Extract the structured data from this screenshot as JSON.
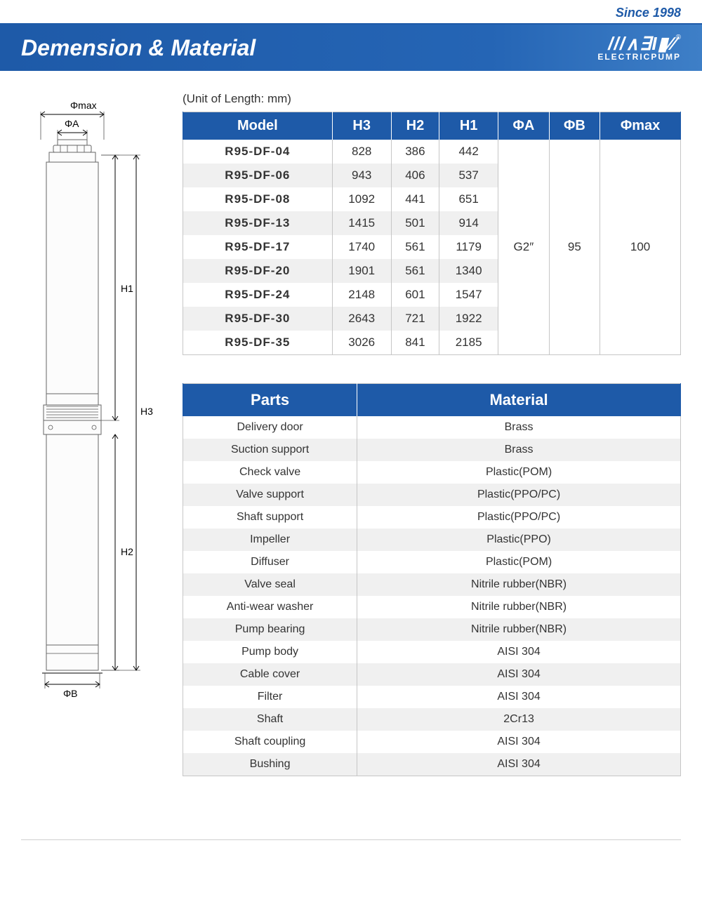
{
  "top": {
    "since": "Since 1998"
  },
  "header": {
    "title": "Demension & Material",
    "logo_top": "///∧∃I▮∕∕",
    "logo_bottom": "ELECTRICPUMP",
    "reg": "®"
  },
  "unit_label": "(Unit of Length: mm)",
  "dim_headers": [
    "Model",
    "H3",
    "H2",
    "H1",
    "ΦA",
    "ΦB",
    "Φmax"
  ],
  "dim_rows": [
    {
      "m": "R95-DF-04",
      "h3": "828",
      "h2": "386",
      "h1": "442"
    },
    {
      "m": "R95-DF-06",
      "h3": "943",
      "h2": "406",
      "h1": "537"
    },
    {
      "m": "R95-DF-08",
      "h3": "1092",
      "h2": "441",
      "h1": "651"
    },
    {
      "m": "R95-DF-13",
      "h3": "1415",
      "h2": "501",
      "h1": "914"
    },
    {
      "m": "R95-DF-17",
      "h3": "1740",
      "h2": "561",
      "h1": "1179"
    },
    {
      "m": "R95-DF-20",
      "h3": "1901",
      "h2": "561",
      "h1": "1340"
    },
    {
      "m": "R95-DF-24",
      "h3": "2148",
      "h2": "601",
      "h1": "1547"
    },
    {
      "m": "R95-DF-30",
      "h3": "2643",
      "h2": "721",
      "h1": "1922"
    },
    {
      "m": "R95-DF-35",
      "h3": "3026",
      "h2": "841",
      "h1": "2185"
    }
  ],
  "dim_merged": {
    "phiA": "G2″",
    "phiB": "95",
    "phiMax": "100"
  },
  "mat_headers": [
    "Parts",
    "Material"
  ],
  "mat_rows": [
    {
      "p": "Delivery door",
      "m": "Brass"
    },
    {
      "p": "Suction support",
      "m": "Brass"
    },
    {
      "p": "Check valve",
      "m": "Plastic(POM)"
    },
    {
      "p": "Valve support",
      "m": "Plastic(PPO/PC)"
    },
    {
      "p": "Shaft support",
      "m": "Plastic(PPO/PC)"
    },
    {
      "p": "Impeller",
      "m": "Plastic(PPO)"
    },
    {
      "p": "Diffuser",
      "m": "Plastic(POM)"
    },
    {
      "p": "Valve seal",
      "m": "Nitrile rubber(NBR)"
    },
    {
      "p": "Anti-wear washer",
      "m": "Nitrile rubber(NBR)"
    },
    {
      "p": "Pump bearing",
      "m": "Nitrile rubber(NBR)"
    },
    {
      "p": "Pump body",
      "m": "AISI 304"
    },
    {
      "p": "Cable cover",
      "m": "AISI 304"
    },
    {
      "p": "Filter",
      "m": "AISI 304"
    },
    {
      "p": "Shaft",
      "m": "2Cr13"
    },
    {
      "p": "Shaft coupling",
      "m": "AISI 304"
    },
    {
      "p": "Bushing",
      "m": "AISI 304"
    }
  ],
  "diagram": {
    "labels": {
      "phiMax": "Φmax",
      "phiA": "ΦA",
      "phiB": "ΦB",
      "h1": "H1",
      "h2": "H2",
      "h3": "H3"
    },
    "colors": {
      "stroke": "#000000",
      "body": "#fcfcfc"
    }
  }
}
